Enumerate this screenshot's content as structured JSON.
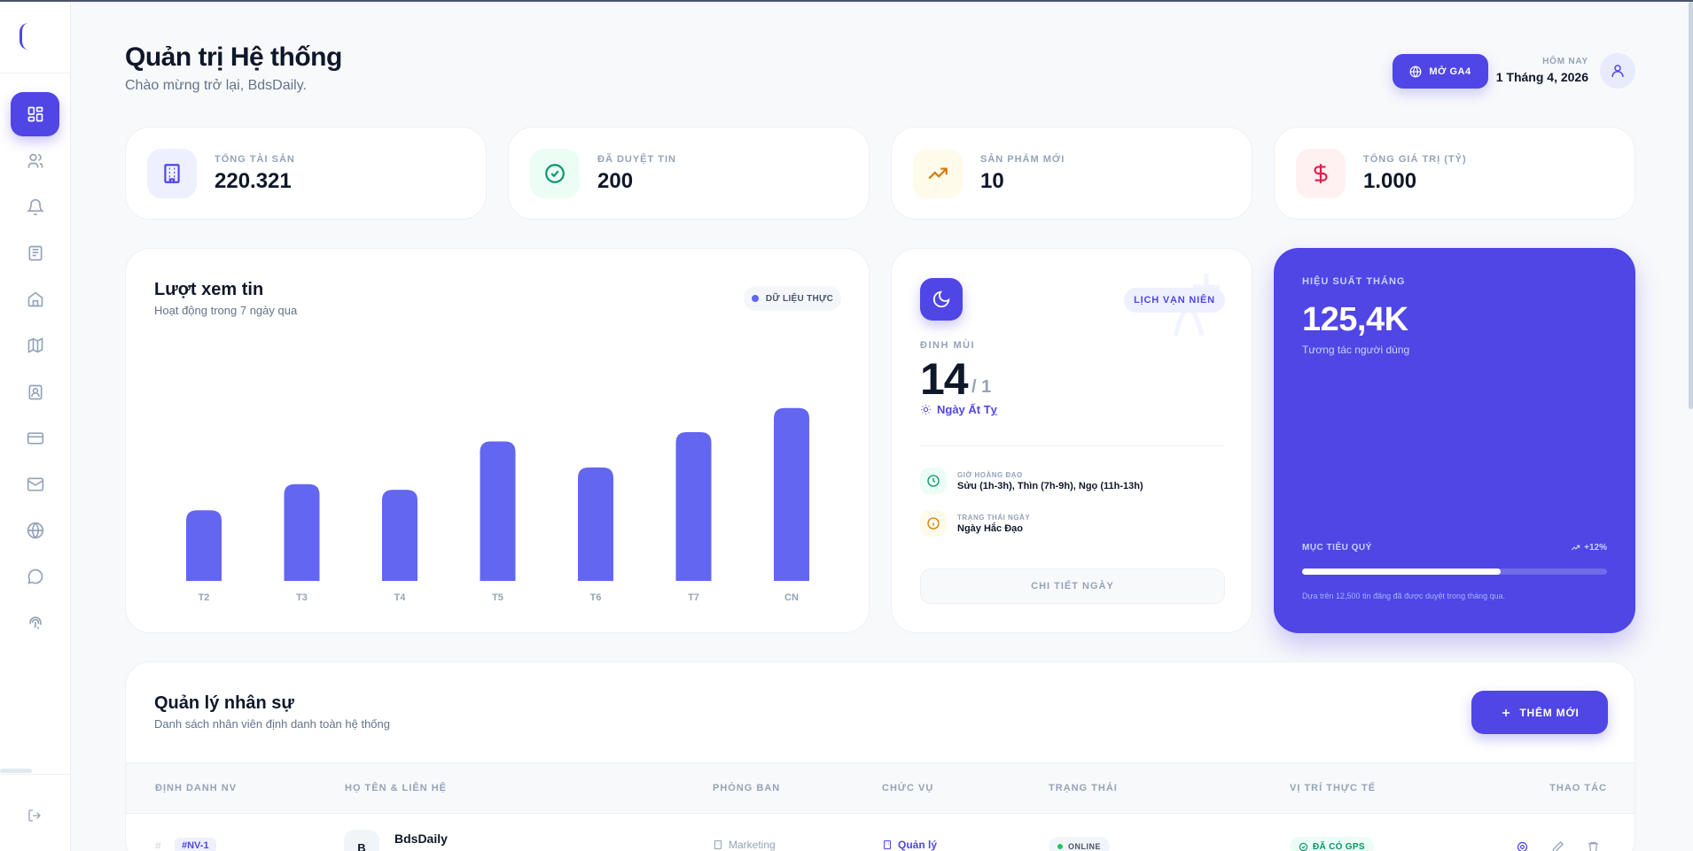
{
  "header": {
    "title": "Quản trị Hệ thống",
    "subtitle": "Chào mừng trở lại, BdsDaily.",
    "ga4_button": "MỞ GA4",
    "today_label": "HÔM NAY",
    "today_date": "1 Tháng 4, 2026"
  },
  "sidebar": {
    "items": [
      {
        "name": "dashboard",
        "icon": "grid-icon",
        "active": true
      },
      {
        "name": "users",
        "icon": "users-icon"
      },
      {
        "name": "notifications",
        "icon": "bell-icon"
      },
      {
        "name": "news",
        "icon": "newspaper-icon"
      },
      {
        "name": "properties",
        "icon": "home-icon"
      },
      {
        "name": "map",
        "icon": "map-icon"
      },
      {
        "name": "contacts",
        "icon": "contact-card-icon"
      },
      {
        "name": "payments",
        "icon": "credit-card-icon"
      },
      {
        "name": "mail",
        "icon": "mail-icon"
      },
      {
        "name": "web",
        "icon": "globe-icon"
      },
      {
        "name": "chat",
        "icon": "message-icon"
      },
      {
        "name": "fingerprint",
        "icon": "fingerprint-icon"
      }
    ],
    "logout_icon": "logout-icon"
  },
  "stats": [
    {
      "label": "TỔNG TÀI SẢN",
      "value": "220.321",
      "icon": "building-icon",
      "color": "#4f46e5",
      "bg": "#eef0ff"
    },
    {
      "label": "ĐÃ DUYỆT TIN",
      "value": "200",
      "icon": "check-circle-icon",
      "color": "#059669",
      "bg": "#ecfdf5"
    },
    {
      "label": "SẢN PHẨM MỚI",
      "value": "10",
      "icon": "trending-up-icon",
      "color": "#d97706",
      "bg": "#fffbeb"
    },
    {
      "label": "TỔNG GIÁ TRỊ (TỶ)",
      "value": "1.000",
      "icon": "dollar-icon",
      "color": "#e11d48",
      "bg": "#fff1f2"
    }
  ],
  "views_chart": {
    "title": "Lượt xem tin",
    "subtitle": "Hoạt động trong 7 ngày qua",
    "badge": "DỮ LIỆU THỰC"
  },
  "chart_data": {
    "type": "bar",
    "title": "Lượt xem tin",
    "categories": [
      "T2",
      "T3",
      "T4",
      "T5",
      "T6",
      "T7",
      "CN"
    ],
    "values": [
      38,
      52,
      49,
      75,
      61,
      80,
      93
    ],
    "ylim": [
      0,
      100
    ],
    "grid": false,
    "bar_color": "#6366f1"
  },
  "calendar": {
    "badge": "LỊCH VẠN NIÊN",
    "year_label": "ĐINH MÙI",
    "day": "14",
    "month": "/ 1",
    "day_type": "Ngày Ất Tỵ",
    "good_hours_label": "GIỜ HOÀNG ĐẠO",
    "good_hours": "Sửu (1h-3h), Thìn (7h-9h), Ngọ (11h-13h)",
    "day_status_label": "TRẠNG THÁI NGÀY",
    "day_status": "Ngày Hắc Đạo",
    "detail_button": "CHI TIẾT NGÀY"
  },
  "performance": {
    "label": "HIỆU SUẤT THÁNG",
    "value": "125,4K",
    "subtitle": "Tương tác người dùng",
    "goal_label": "MỤC TIÊU QUÝ",
    "growth": "+12%",
    "goal_progress": 0.65,
    "note": "Dựa trên 12,500 tin đăng đã được duyệt trong tháng qua."
  },
  "hr": {
    "title": "Quản lý nhân sự",
    "subtitle": "Danh sách nhân viên định danh toàn hệ thống",
    "add_button": "THÊM MỚI",
    "columns": [
      "ĐỊNH DANH NV",
      "HỌ TÊN & LIÊN HỆ",
      "PHÒNG BAN",
      "CHỨC VỤ",
      "TRẠNG THÁI",
      "VỊ TRÍ THỰC TẾ",
      "THAO TÁC"
    ],
    "rows": [
      {
        "hash": "#",
        "id": "#NV-1",
        "initial": "B",
        "name": "BdsDaily",
        "dept": "Marketing",
        "role": "Quản lý",
        "status": "ONLINE",
        "location": "ĐÃ CÓ GPS"
      }
    ]
  }
}
